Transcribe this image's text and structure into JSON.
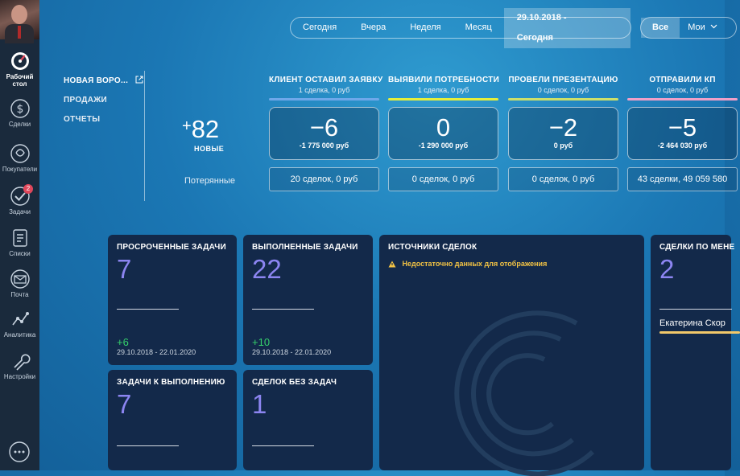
{
  "sidebar": {
    "items": [
      {
        "label": "Рабочий стол",
        "icon": "dashboard-gauge-icon"
      },
      {
        "label": "Сделки",
        "icon": "dollar-icon"
      },
      {
        "label": "Покупатели",
        "icon": "buyers-icon"
      },
      {
        "label": "Задачи",
        "icon": "check-icon",
        "badge": "2"
      },
      {
        "label": "Списки",
        "icon": "list-icon"
      },
      {
        "label": "Почта",
        "icon": "mail-icon"
      },
      {
        "label": "Аналитика",
        "icon": "analytics-icon"
      },
      {
        "label": "Настройки",
        "icon": "wrench-icon"
      }
    ]
  },
  "filters": {
    "today": "Сегодня",
    "yesterday": "Вчера",
    "week": "Неделя",
    "month": "Месяц",
    "range": "29.10.2018 - Сегодня",
    "all": "Все",
    "mine": "Мои"
  },
  "pipelines": [
    "НОВАЯ ВОРО...",
    "ПРОДАЖИ",
    "ОТЧЕТЫ"
  ],
  "summary": {
    "new_plus": "+",
    "new_count": "82",
    "new_label": "НОВЫЕ",
    "lost_label": "Потерянные"
  },
  "stages": [
    {
      "title": "КЛИЕНТ ОСТАВИЛ ЗАЯВКУ",
      "sub": "1 сделка, 0 руб",
      "color": "#6fa8ea",
      "num": "−6",
      "money": "-1 775 000 руб",
      "lost": "20 сделок, 0 руб"
    },
    {
      "title": "ВЫЯВИЛИ ПОТРЕБНОСТИ",
      "sub": "1 сделка, 0 руб",
      "color": "#e6ef3b",
      "num": "0",
      "money": "-1 290 000 руб",
      "lost": "0 сделок, 0 руб"
    },
    {
      "title": "ПРОВЕЛИ ПРЕЗЕНТАЦИЮ",
      "sub": "0 сделок, 0 руб",
      "color": "#cde06a",
      "num": "−2",
      "money": "0 руб",
      "lost": "0 сделок, 0 руб"
    },
    {
      "title": "ОТПРАВИЛИ КП",
      "sub": "0 сделок, 0 руб",
      "color": "#f0a0c8",
      "num": "−5",
      "money": "-2 464 030 руб",
      "lost": "43 сделки, 49 059 580"
    }
  ],
  "widgets": {
    "overdue": {
      "title": "ПРОСРОЧЕННЫЕ ЗАДАЧИ",
      "value": "7",
      "delta": "+6",
      "period": "29.10.2018 - 22.01.2020"
    },
    "done": {
      "title": "ВЫПОЛНЕННЫЕ ЗАДАЧИ",
      "value": "22",
      "delta": "+10",
      "period": "29.10.2018 - 22.01.2020"
    },
    "sources": {
      "title": "ИСТОЧНИКИ СДЕЛОК",
      "warning": "Недостаточно данных для отображения"
    },
    "by_manager": {
      "title": "СДЕЛКИ ПО МЕНЕ",
      "value": "2",
      "manager": "Екатерина Скор"
    },
    "todo": {
      "title": "ЗАДАЧИ К ВЫПОЛНЕНИЮ",
      "value": "7"
    },
    "no_tasks": {
      "title": "СДЕЛОК БЕЗ ЗАДАЧ",
      "value": "1"
    }
  }
}
